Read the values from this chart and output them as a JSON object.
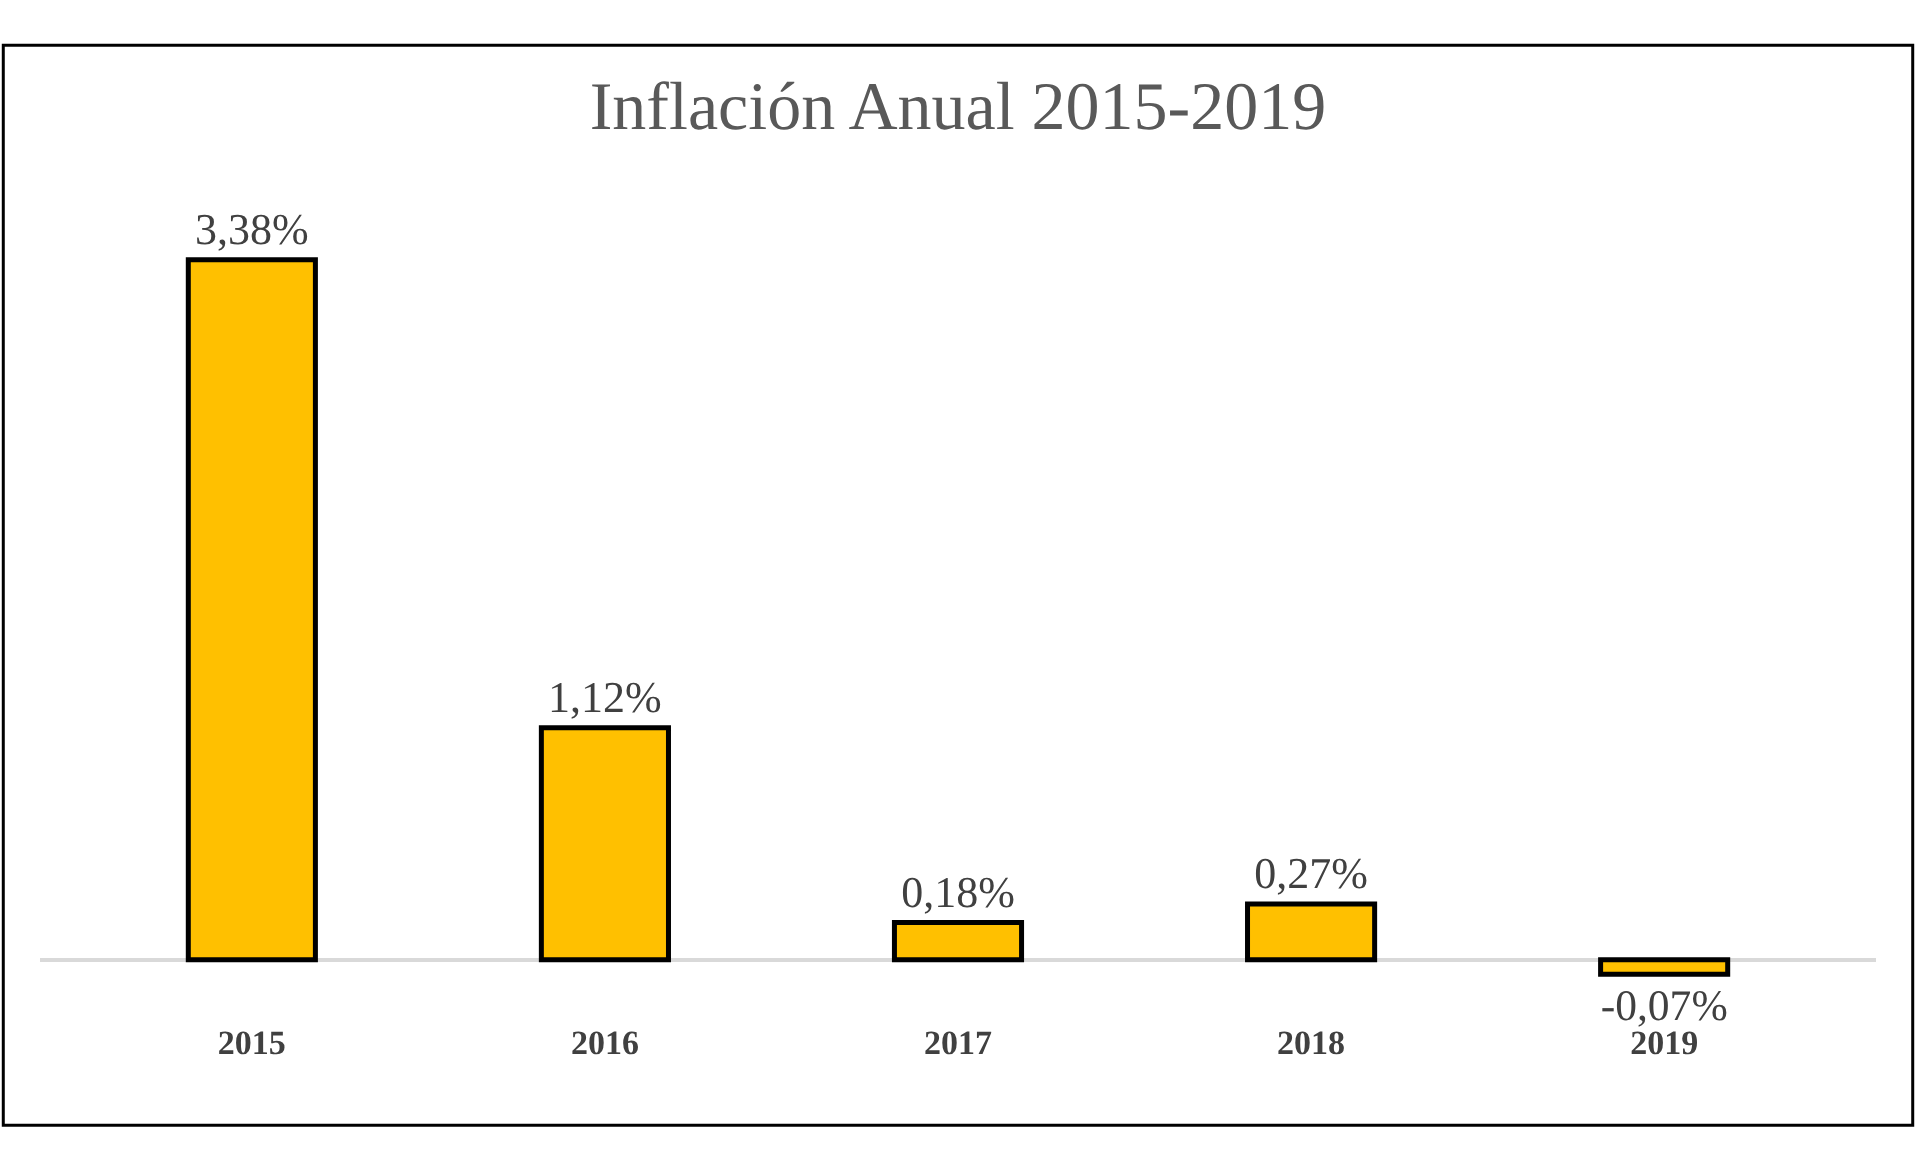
{
  "chart_data": {
    "type": "bar",
    "title": "Inflación Anual 2015-2019",
    "categories": [
      "2015",
      "2016",
      "2017",
      "2018",
      "2019"
    ],
    "values": [
      3.38,
      1.12,
      0.18,
      0.27,
      -0.07
    ],
    "value_labels": [
      "3,38%",
      "1,12%",
      "0,18%",
      "0,27%",
      "-0,07%"
    ],
    "color": "#ffc000",
    "legend": false
  }
}
